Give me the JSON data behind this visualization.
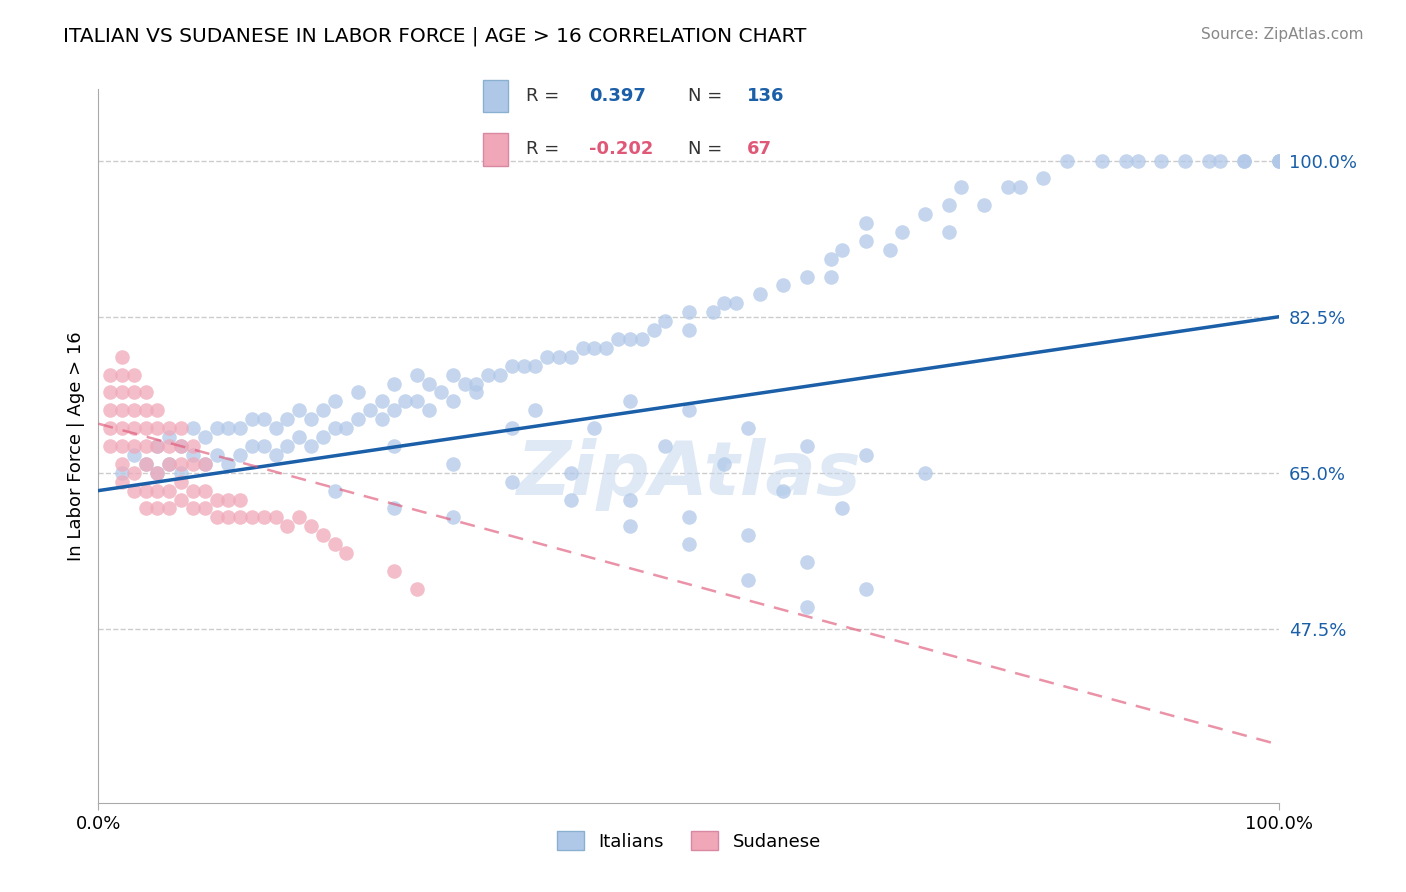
{
  "title": "ITALIAN VS SUDANESE IN LABOR FORCE | AGE > 16 CORRELATION CHART",
  "source_text": "Source: ZipAtlas.com",
  "ylabel": "In Labor Force | Age > 16",
  "xlim": [
    0.0,
    1.0
  ],
  "ylim": [
    0.28,
    1.08
  ],
  "yticks": [
    0.475,
    0.65,
    0.825,
    1.0
  ],
  "ytick_labels": [
    "47.5%",
    "65.0%",
    "82.5%",
    "100.0%"
  ],
  "xticks": [
    0.0,
    1.0
  ],
  "xtick_labels": [
    "0.0%",
    "100.0%"
  ],
  "grid_color": "#cccccc",
  "background_color": "#ffffff",
  "watermark": "ZipAtlas",
  "italian_color": "#b0c8e8",
  "sudanese_color": "#f0a8b8",
  "italian_line_color": "#1a5fa8",
  "sudanese_line_color": "#e05878",
  "marker_size": 110,
  "italian_x": [
    0.02,
    0.03,
    0.04,
    0.05,
    0.05,
    0.06,
    0.06,
    0.07,
    0.07,
    0.08,
    0.08,
    0.09,
    0.09,
    0.1,
    0.1,
    0.11,
    0.11,
    0.12,
    0.12,
    0.13,
    0.13,
    0.14,
    0.14,
    0.15,
    0.15,
    0.16,
    0.16,
    0.17,
    0.17,
    0.18,
    0.18,
    0.19,
    0.19,
    0.2,
    0.2,
    0.21,
    0.22,
    0.22,
    0.23,
    0.24,
    0.24,
    0.25,
    0.25,
    0.26,
    0.27,
    0.27,
    0.28,
    0.28,
    0.29,
    0.3,
    0.3,
    0.31,
    0.32,
    0.33,
    0.34,
    0.35,
    0.36,
    0.37,
    0.38,
    0.39,
    0.4,
    0.41,
    0.42,
    0.43,
    0.44,
    0.45,
    0.46,
    0.47,
    0.48,
    0.5,
    0.5,
    0.52,
    0.53,
    0.54,
    0.56,
    0.58,
    0.6,
    0.62,
    0.62,
    0.63,
    0.65,
    0.65,
    0.67,
    0.68,
    0.7,
    0.72,
    0.72,
    0.73,
    0.75,
    0.77,
    0.78,
    0.8,
    0.82,
    0.85,
    0.87,
    0.88,
    0.9,
    0.92,
    0.94,
    0.95,
    0.97,
    0.97,
    1.0,
    1.0,
    1.0,
    0.35,
    0.4,
    0.45,
    0.5,
    0.55,
    0.6,
    0.65,
    0.25,
    0.3,
    0.35,
    0.4,
    0.45,
    0.5,
    0.55,
    0.6,
    0.45,
    0.5,
    0.55,
    0.6,
    0.65,
    0.7,
    0.32,
    0.37,
    0.42,
    0.48,
    0.53,
    0.58,
    0.63,
    0.2,
    0.25,
    0.3
  ],
  "italian_y": [
    0.65,
    0.67,
    0.66,
    0.65,
    0.68,
    0.66,
    0.69,
    0.65,
    0.68,
    0.67,
    0.7,
    0.66,
    0.69,
    0.67,
    0.7,
    0.66,
    0.7,
    0.67,
    0.7,
    0.68,
    0.71,
    0.68,
    0.71,
    0.67,
    0.7,
    0.68,
    0.71,
    0.69,
    0.72,
    0.68,
    0.71,
    0.69,
    0.72,
    0.7,
    0.73,
    0.7,
    0.71,
    0.74,
    0.72,
    0.71,
    0.73,
    0.72,
    0.75,
    0.73,
    0.73,
    0.76,
    0.72,
    0.75,
    0.74,
    0.73,
    0.76,
    0.75,
    0.75,
    0.76,
    0.76,
    0.77,
    0.77,
    0.77,
    0.78,
    0.78,
    0.78,
    0.79,
    0.79,
    0.79,
    0.8,
    0.8,
    0.8,
    0.81,
    0.82,
    0.81,
    0.83,
    0.83,
    0.84,
    0.84,
    0.85,
    0.86,
    0.87,
    0.87,
    0.89,
    0.9,
    0.91,
    0.93,
    0.9,
    0.92,
    0.94,
    0.92,
    0.95,
    0.97,
    0.95,
    0.97,
    0.97,
    0.98,
    1.0,
    1.0,
    1.0,
    1.0,
    1.0,
    1.0,
    1.0,
    1.0,
    1.0,
    1.0,
    1.0,
    1.0,
    1.0,
    0.7,
    0.65,
    0.62,
    0.6,
    0.58,
    0.55,
    0.52,
    0.68,
    0.66,
    0.64,
    0.62,
    0.59,
    0.57,
    0.53,
    0.5,
    0.73,
    0.72,
    0.7,
    0.68,
    0.67,
    0.65,
    0.74,
    0.72,
    0.7,
    0.68,
    0.66,
    0.63,
    0.61,
    0.63,
    0.61,
    0.6
  ],
  "sudanese_x": [
    0.01,
    0.01,
    0.01,
    0.01,
    0.01,
    0.02,
    0.02,
    0.02,
    0.02,
    0.02,
    0.02,
    0.02,
    0.02,
    0.03,
    0.03,
    0.03,
    0.03,
    0.03,
    0.03,
    0.03,
    0.04,
    0.04,
    0.04,
    0.04,
    0.04,
    0.04,
    0.04,
    0.05,
    0.05,
    0.05,
    0.05,
    0.05,
    0.05,
    0.06,
    0.06,
    0.06,
    0.06,
    0.06,
    0.07,
    0.07,
    0.07,
    0.07,
    0.07,
    0.08,
    0.08,
    0.08,
    0.08,
    0.09,
    0.09,
    0.09,
    0.1,
    0.1,
    0.11,
    0.11,
    0.12,
    0.12,
    0.13,
    0.14,
    0.15,
    0.16,
    0.17,
    0.18,
    0.19,
    0.2,
    0.21,
    0.25,
    0.27
  ],
  "sudanese_y": [
    0.68,
    0.7,
    0.72,
    0.74,
    0.76,
    0.64,
    0.66,
    0.68,
    0.7,
    0.72,
    0.74,
    0.76,
    0.78,
    0.63,
    0.65,
    0.68,
    0.7,
    0.72,
    0.74,
    0.76,
    0.61,
    0.63,
    0.66,
    0.68,
    0.7,
    0.72,
    0.74,
    0.61,
    0.63,
    0.65,
    0.68,
    0.7,
    0.72,
    0.61,
    0.63,
    0.66,
    0.68,
    0.7,
    0.62,
    0.64,
    0.66,
    0.68,
    0.7,
    0.61,
    0.63,
    0.66,
    0.68,
    0.61,
    0.63,
    0.66,
    0.6,
    0.62,
    0.6,
    0.62,
    0.6,
    0.62,
    0.6,
    0.6,
    0.6,
    0.59,
    0.6,
    0.59,
    0.58,
    0.57,
    0.56,
    0.54,
    0.52
  ],
  "blue_line_x0": 0.0,
  "blue_line_x1": 1.0,
  "blue_line_y0": 0.63,
  "blue_line_y1": 0.825,
  "pink_line_x0": 0.0,
  "pink_line_x1": 1.0,
  "pink_line_y0": 0.705,
  "pink_line_y1": 0.345
}
